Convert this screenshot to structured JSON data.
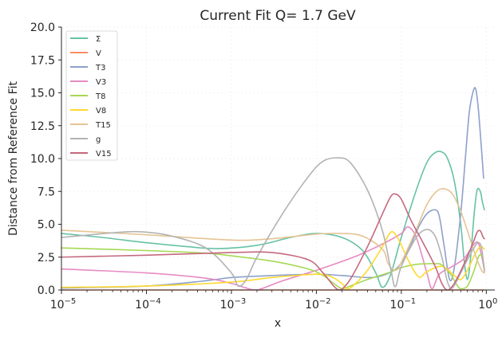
{
  "chart_data": {
    "type": "line",
    "title": "Current Fit Q= 1.7 GeV",
    "xlabel": "x",
    "ylabel": "Distance from Reference Fit",
    "xscale": "log",
    "xlim": [
      1e-05,
      1.26
    ],
    "ylim": [
      0,
      20
    ],
    "grid": true,
    "legend_position": "top-left",
    "yticks": [
      0,
      2.5,
      5,
      7.5,
      10,
      12.5,
      15,
      17.5,
      20
    ],
    "ytick_labels": [
      "0.0",
      "2.5",
      "5.0",
      "7.5",
      "10.0",
      "12.5",
      "15.0",
      "17.5",
      "20.0"
    ],
    "xticks": [
      {
        "value": 1e-05,
        "base": "10",
        "exp": "−5"
      },
      {
        "value": 0.0001,
        "base": "10",
        "exp": "−4"
      },
      {
        "value": 0.001,
        "base": "10",
        "exp": "−3"
      },
      {
        "value": 0.01,
        "base": "10",
        "exp": "−2"
      },
      {
        "value": 0.1,
        "base": "10",
        "exp": "−1"
      },
      {
        "value": 1,
        "base": "10",
        "exp": "0"
      }
    ],
    "series": [
      {
        "name": "Σ",
        "color": "#66c2a5",
        "points": [
          [
            1e-05,
            4.3
          ],
          [
            3e-05,
            4.0
          ],
          [
            0.0001,
            3.6
          ],
          [
            0.0003,
            3.3
          ],
          [
            0.0007,
            3.15
          ],
          [
            0.002,
            3.4
          ],
          [
            0.005,
            4.0
          ],
          [
            0.01,
            4.3
          ],
          [
            0.02,
            4.0
          ],
          [
            0.035,
            3.0
          ],
          [
            0.05,
            1.3
          ],
          [
            0.06,
            0.2
          ],
          [
            0.075,
            1.2
          ],
          [
            0.1,
            4.0
          ],
          [
            0.15,
            7.6
          ],
          [
            0.2,
            9.7
          ],
          [
            0.25,
            10.45
          ],
          [
            0.3,
            10.5
          ],
          [
            0.35,
            10.0
          ],
          [
            0.42,
            8.3
          ],
          [
            0.5,
            5.0
          ],
          [
            0.55,
            2.2
          ],
          [
            0.6,
            0.8
          ],
          [
            0.65,
            2.3
          ],
          [
            0.72,
            5.8
          ],
          [
            0.78,
            7.6
          ],
          [
            0.85,
            7.5
          ],
          [
            0.9,
            6.7
          ],
          [
            0.95,
            6.1
          ]
        ]
      },
      {
        "name": "V",
        "color": "#fc8d62",
        "points": [
          [
            1e-05,
            0.0
          ],
          [
            0.0001,
            0.0
          ],
          [
            0.001,
            0.0
          ],
          [
            0.01,
            0.0
          ],
          [
            0.1,
            0.0
          ],
          [
            0.95,
            0.0
          ]
        ]
      },
      {
        "name": "T3",
        "color": "#8da0cb",
        "points": [
          [
            1e-05,
            0.15
          ],
          [
            0.0001,
            0.3
          ],
          [
            0.0005,
            0.7
          ],
          [
            0.001,
            0.95
          ],
          [
            0.003,
            1.1
          ],
          [
            0.01,
            1.2
          ],
          [
            0.02,
            1.1
          ],
          [
            0.04,
            0.95
          ],
          [
            0.06,
            1.1
          ],
          [
            0.09,
            1.7
          ],
          [
            0.12,
            3.0
          ],
          [
            0.16,
            4.8
          ],
          [
            0.2,
            5.8
          ],
          [
            0.25,
            6.1
          ],
          [
            0.28,
            5.6
          ],
          [
            0.32,
            3.3
          ],
          [
            0.37,
            0.8
          ],
          [
            0.42,
            1.7
          ],
          [
            0.5,
            5.8
          ],
          [
            0.57,
            10.2
          ],
          [
            0.63,
            13.5
          ],
          [
            0.7,
            15.1
          ],
          [
            0.75,
            15.3
          ],
          [
            0.8,
            14.0
          ],
          [
            0.86,
            11.5
          ],
          [
            0.93,
            8.5
          ]
        ]
      },
      {
        "name": "V3",
        "color": "#e78ac3",
        "points": [
          [
            1e-05,
            1.6
          ],
          [
            0.0001,
            1.3
          ],
          [
            0.0005,
            0.9
          ],
          [
            0.001,
            0.5
          ],
          [
            0.0015,
            0.15
          ],
          [
            0.002,
            0.0
          ],
          [
            0.004,
            0.7
          ],
          [
            0.01,
            1.5
          ],
          [
            0.03,
            2.6
          ],
          [
            0.06,
            3.5
          ],
          [
            0.1,
            4.3
          ],
          [
            0.12,
            4.8
          ],
          [
            0.15,
            4.0
          ],
          [
            0.2,
            1.3
          ],
          [
            0.23,
            0.1
          ],
          [
            0.28,
            1.2
          ],
          [
            0.4,
            1.8
          ],
          [
            0.55,
            2.4
          ],
          [
            0.7,
            3.4
          ],
          [
            0.8,
            3.6
          ],
          [
            0.88,
            2.6
          ],
          [
            0.95,
            1.5
          ]
        ]
      },
      {
        "name": "T8",
        "color": "#a6d854",
        "points": [
          [
            1e-05,
            3.2
          ],
          [
            0.0001,
            3.0
          ],
          [
            0.0005,
            2.8
          ],
          [
            0.001,
            2.6
          ],
          [
            0.003,
            2.2
          ],
          [
            0.008,
            1.6
          ],
          [
            0.012,
            1.1
          ],
          [
            0.016,
            0.5
          ],
          [
            0.02,
            0.1
          ],
          [
            0.025,
            0.3
          ],
          [
            0.04,
            0.8
          ],
          [
            0.07,
            1.3
          ],
          [
            0.1,
            1.7
          ],
          [
            0.15,
            1.95
          ],
          [
            0.25,
            2.0
          ],
          [
            0.3,
            1.9
          ],
          [
            0.38,
            1.2
          ],
          [
            0.45,
            0.4
          ],
          [
            0.5,
            0.1
          ],
          [
            0.6,
            0.3
          ],
          [
            0.72,
            1.5
          ],
          [
            0.82,
            2.6
          ],
          [
            0.9,
            2.5
          ],
          [
            0.95,
            1.6
          ]
        ]
      },
      {
        "name": "V8",
        "color": "#ffd92f",
        "points": [
          [
            1e-05,
            0.2
          ],
          [
            0.0001,
            0.3
          ],
          [
            0.001,
            0.6
          ],
          [
            0.003,
            0.95
          ],
          [
            0.01,
            1.2
          ],
          [
            0.015,
            1.0
          ],
          [
            0.02,
            0.5
          ],
          [
            0.023,
            0.1
          ],
          [
            0.028,
            0.4
          ],
          [
            0.04,
            1.5
          ],
          [
            0.06,
            3.3
          ],
          [
            0.075,
            4.4
          ],
          [
            0.09,
            4.0
          ],
          [
            0.12,
            2.3
          ],
          [
            0.16,
            1.0
          ],
          [
            0.2,
            1.4
          ],
          [
            0.3,
            1.8
          ],
          [
            0.42,
            1.1
          ],
          [
            0.5,
            0.8
          ],
          [
            0.6,
            1.5
          ],
          [
            0.72,
            2.6
          ],
          [
            0.85,
            3.3
          ],
          [
            0.95,
            3.1
          ]
        ]
      },
      {
        "name": "T15",
        "color": "#e5c494",
        "points": [
          [
            1e-05,
            4.55
          ],
          [
            0.0001,
            4.2
          ],
          [
            0.001,
            3.8
          ],
          [
            0.003,
            3.9
          ],
          [
            0.01,
            4.25
          ],
          [
            0.02,
            4.3
          ],
          [
            0.035,
            4.1
          ],
          [
            0.06,
            3.1
          ],
          [
            0.07,
            2.0
          ],
          [
            0.085,
            1.5
          ],
          [
            0.1,
            2.1
          ],
          [
            0.15,
            4.6
          ],
          [
            0.2,
            6.5
          ],
          [
            0.26,
            7.5
          ],
          [
            0.32,
            7.7
          ],
          [
            0.4,
            7.3
          ],
          [
            0.5,
            6.0
          ],
          [
            0.6,
            4.5
          ],
          [
            0.75,
            2.6
          ],
          [
            0.88,
            1.5
          ],
          [
            0.95,
            1.3
          ]
        ]
      },
      {
        "name": "g",
        "color": "#b3b3b3",
        "points": [
          [
            1e-05,
            4.0
          ],
          [
            5e-05,
            4.4
          ],
          [
            0.0001,
            4.4
          ],
          [
            0.0002,
            4.1
          ],
          [
            0.0005,
            3.2
          ],
          [
            0.001,
            1.3
          ],
          [
            0.0012,
            0.3
          ],
          [
            0.0015,
            0.8
          ],
          [
            0.002,
            2.5
          ],
          [
            0.004,
            5.8
          ],
          [
            0.008,
            8.6
          ],
          [
            0.012,
            9.8
          ],
          [
            0.018,
            10.05
          ],
          [
            0.025,
            9.7
          ],
          [
            0.04,
            7.6
          ],
          [
            0.06,
            4.5
          ],
          [
            0.075,
            1.6
          ],
          [
            0.085,
            0.25
          ],
          [
            0.1,
            1.8
          ],
          [
            0.15,
            4.0
          ],
          [
            0.2,
            4.6
          ],
          [
            0.25,
            4.1
          ],
          [
            0.3,
            2.5
          ],
          [
            0.35,
            0.6
          ],
          [
            0.4,
            0.15
          ],
          [
            0.5,
            1.3
          ],
          [
            0.6,
            2.3
          ],
          [
            0.7,
            3.1
          ],
          [
            0.8,
            3.6
          ],
          [
            0.88,
            3.2
          ],
          [
            0.95,
            1.4
          ]
        ]
      },
      {
        "name": "V15",
        "color": "#c6687e",
        "points": [
          [
            1e-05,
            2.5
          ],
          [
            0.0001,
            2.65
          ],
          [
            0.001,
            2.85
          ],
          [
            0.003,
            2.85
          ],
          [
            0.008,
            2.3
          ],
          [
            0.012,
            1.3
          ],
          [
            0.016,
            0.3
          ],
          [
            0.019,
            0.0
          ],
          [
            0.025,
            0.8
          ],
          [
            0.04,
            3.3
          ],
          [
            0.06,
            5.8
          ],
          [
            0.075,
            7.1
          ],
          [
            0.085,
            7.3
          ],
          [
            0.1,
            6.9
          ],
          [
            0.13,
            5.3
          ],
          [
            0.18,
            3.6
          ],
          [
            0.25,
            1.8
          ],
          [
            0.3,
            0.5
          ],
          [
            0.35,
            0.0
          ],
          [
            0.42,
            0.5
          ],
          [
            0.55,
            2.0
          ],
          [
            0.7,
            3.6
          ],
          [
            0.78,
            4.4
          ],
          [
            0.85,
            4.5
          ],
          [
            0.92,
            4.0
          ],
          [
            0.95,
            3.9
          ]
        ]
      }
    ]
  }
}
